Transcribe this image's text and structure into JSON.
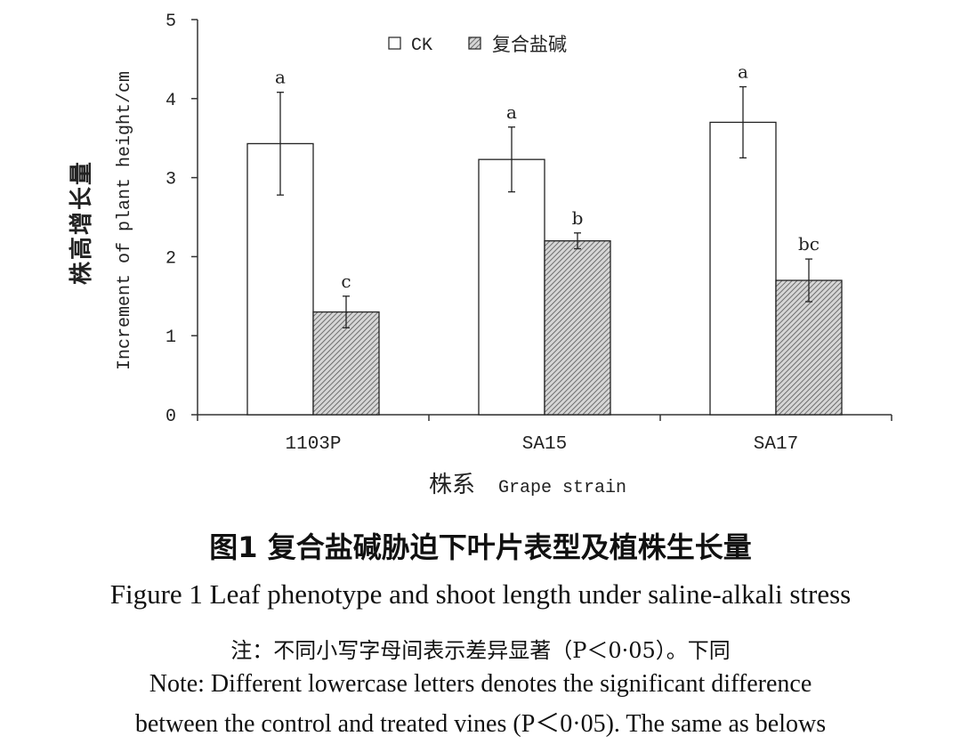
{
  "chart_data": {
    "type": "bar",
    "categories": [
      "1103P",
      "SA15",
      "SA17"
    ],
    "series": [
      {
        "name": "CK",
        "values": [
          3.43,
          3.23,
          3.7
        ],
        "errors": [
          0.65,
          0.41,
          0.45
        ],
        "letters": [
          "a",
          "a",
          "a"
        ],
        "fill": "#ffffff"
      },
      {
        "name": "复合盐碱",
        "values": [
          1.3,
          2.2,
          1.7
        ],
        "errors": [
          0.2,
          0.1,
          0.27
        ],
        "letters": [
          "c",
          "b",
          "bc"
        ],
        "fill": "hatched"
      }
    ],
    "ylim": [
      0,
      5
    ],
    "yticks": [
      0,
      1,
      2,
      3,
      4,
      5
    ],
    "ylabel_zh": "株高增长量",
    "ylabel_en": "Increment of plant height/cm",
    "xlabel_zh": "株系",
    "xlabel_en": "Grape strain",
    "legend_position": "top-center",
    "grid": false
  },
  "caption": {
    "zh": "图1  复合盐碱胁迫下叶片表型及植株生长量",
    "en": "Figure 1  Leaf phenotype and shoot length under saline-alkali stress"
  },
  "note": {
    "zh": "注：不同小写字母间表示差异显著（P＜0·05）。下同",
    "en_line1": "Note: Different lowercase letters denotes the significant difference",
    "en_line2": "between the control and treated vines (P＜0·05). The same as belows"
  }
}
